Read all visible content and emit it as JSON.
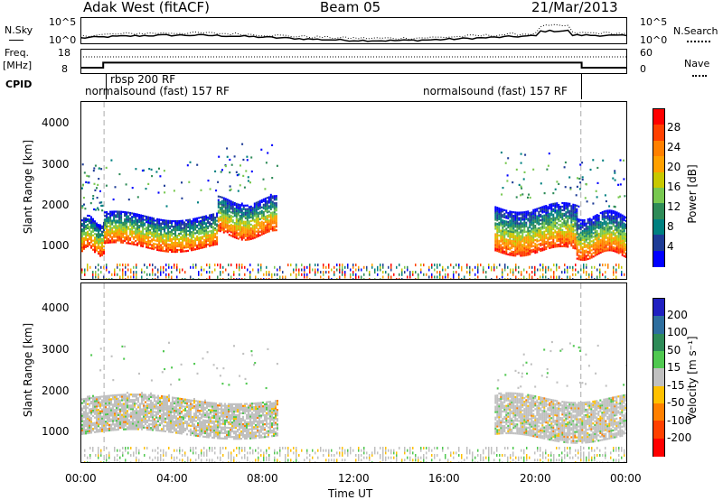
{
  "header": {
    "title": "Adak West (fitACF)",
    "beam": "Beam 05",
    "date": "21/Mar/2013"
  },
  "top_panels": {
    "nsky_label": "N.Sky",
    "nsky_ticks": [
      "10^5",
      "10^0"
    ],
    "nsearch_label": "N.Search",
    "nsearch_ticks": [
      "10^5",
      "10^0"
    ],
    "freq_label_1": "Freq.",
    "freq_label_2": "[MHz]",
    "freq_ticks": [
      "18",
      "8"
    ],
    "nave_label": "Nave",
    "nave_ticks": [
      "60",
      "0"
    ],
    "cpid_label": "CPID",
    "cpid_segments": [
      "normalsound (fast) 157 RF",
      "rbsp 200 RF",
      "normalsound (fast) 157 RF"
    ]
  },
  "power_panel": {
    "ylabel": "Slant Range [km]",
    "yticks": [
      "4000",
      "3000",
      "2000",
      "1000"
    ],
    "colorbar_label": "Power [dB]",
    "colorbar_ticks": [
      "28",
      "24",
      "20",
      "16",
      "12",
      "8",
      "4"
    ],
    "colorbar_colors": [
      "#ff0000",
      "#ff4000",
      "#ff8000",
      "#ffa000",
      "#c8c800",
      "#78c850",
      "#2e8b57",
      "#008080",
      "#1e3c96",
      "#0000ff"
    ]
  },
  "velocity_panel": {
    "ylabel": "Slant Range [km]",
    "yticks": [
      "4000",
      "3000",
      "2000",
      "1000"
    ],
    "colorbar_label": "Velocity [m s⁻¹]",
    "colorbar_ticks": [
      "200",
      "100",
      "50",
      "15",
      "-15",
      "-50",
      "-100",
      "-200"
    ],
    "colorbar_colors": [
      "#2020c0",
      "#2e6e9e",
      "#2e8b57",
      "#50c850",
      "#c0c0c0",
      "#ffc000",
      "#ff8000",
      "#ff4000",
      "#ff0000"
    ]
  },
  "x_axis": {
    "xlabel": "Time UT",
    "xticks": [
      "00:00",
      "04:00",
      "08:00",
      "12:00",
      "16:00",
      "20:00",
      "00:00"
    ]
  },
  "chart_data": {
    "type": "heatmap",
    "title": "Adak West (fitACF)",
    "subtitle": "Beam 05",
    "date": "21/Mar/2013",
    "xlabel": "Time UT",
    "ylabel": "Slant Range [km]",
    "x_range_hours": [
      0,
      24
    ],
    "y_range_km": [
      180,
      4600
    ],
    "grid": false,
    "legend": "colorbars-right",
    "cpid_changes_hours": [
      1.0,
      22.0
    ],
    "freq_mhz": [
      {
        "t_start": 0,
        "t_end": 1.0,
        "value": 10.5
      },
      {
        "t_start": 1.0,
        "t_end": 22.0,
        "value": 12.5
      },
      {
        "t_start": 22.0,
        "t_end": 24,
        "value": 10.5
      }
    ],
    "power_scatter_regions": [
      {
        "t_start": 0.0,
        "t_end": 1.0,
        "r_low": 900,
        "r_high": 1700,
        "peak_db": 28
      },
      {
        "t_start": 1.0,
        "t_end": 6.0,
        "r_low": 1000,
        "r_high": 1800,
        "peak_db": 26
      },
      {
        "t_start": 6.0,
        "t_end": 8.6,
        "r_low": 1300,
        "r_high": 2200,
        "peak_db": 24
      },
      {
        "t_start": 18.2,
        "t_end": 21.8,
        "r_low": 900,
        "r_high": 2000,
        "peak_db": 26
      },
      {
        "t_start": 21.8,
        "t_end": 24.0,
        "r_low": 800,
        "r_high": 1800,
        "peak_db": 20
      }
    ],
    "velocity_scatter_regions": [
      {
        "t_start": 0.0,
        "t_end": 8.6,
        "r_low": 900,
        "r_high": 1800,
        "velocity_ms": 0
      },
      {
        "t_start": 18.2,
        "t_end": 24.0,
        "r_low": 800,
        "r_high": 1800,
        "velocity_ms": 0
      }
    ],
    "ground_clutter_range_km": [
      200,
      600
    ]
  }
}
